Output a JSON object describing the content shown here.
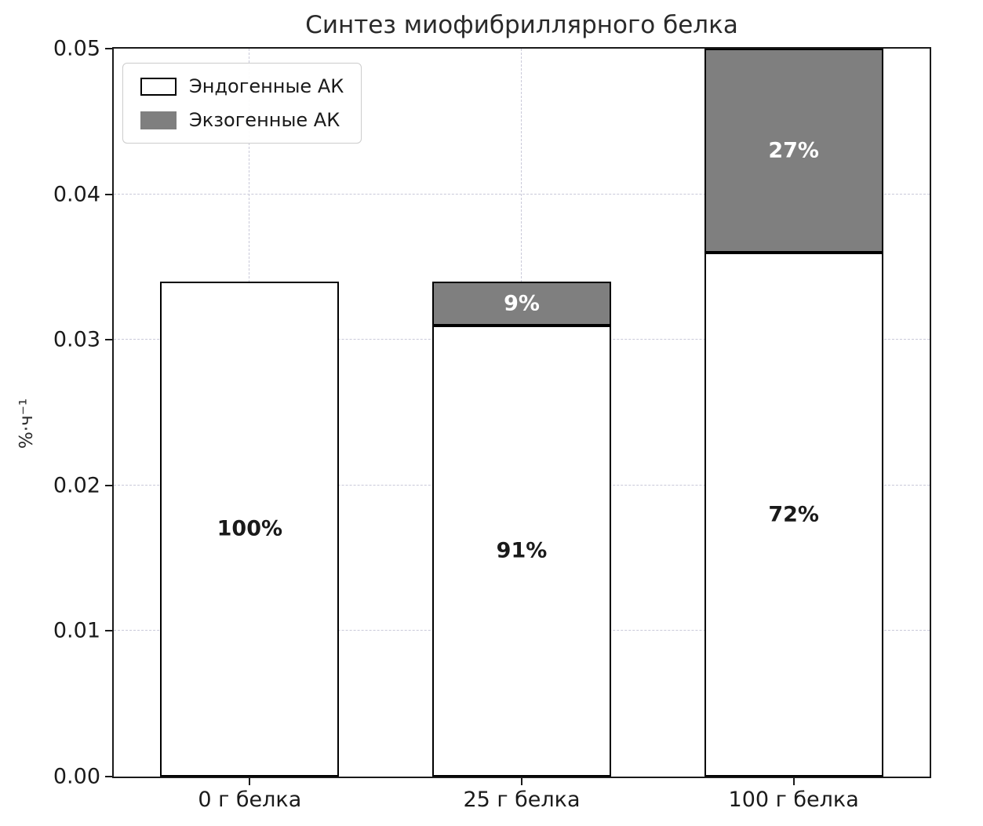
{
  "chart_data": {
    "type": "bar",
    "stacked": true,
    "title": "Синтез миофибриллярного белка",
    "xlabel": "",
    "ylabel": "%·ч⁻¹",
    "categories": [
      "0 г белка",
      "25 г белка",
      "100 г белка"
    ],
    "series": [
      {
        "name": "Эндогенные АК",
        "color": "#ffffff",
        "edge": "#000000",
        "values": [
          0.034,
          0.031,
          0.036
        ],
        "segment_labels": [
          "100%",
          "91%",
          "72%"
        ],
        "label_color": "#1a1a1a"
      },
      {
        "name": "Экзогенные АК",
        "color": "#7f7f7f",
        "edge": "#000000",
        "values": [
          0,
          0.003,
          0.014
        ],
        "segment_labels": [
          "",
          "9%",
          "27%"
        ],
        "label_color": "#ffffff"
      }
    ],
    "ylim": [
      0,
      0.05
    ],
    "yticks": [
      "0.00",
      "0.01",
      "0.02",
      "0.03",
      "0.04",
      "0.05"
    ],
    "grid": true,
    "grid_style": "dashed",
    "legend_position": "upper left"
  }
}
